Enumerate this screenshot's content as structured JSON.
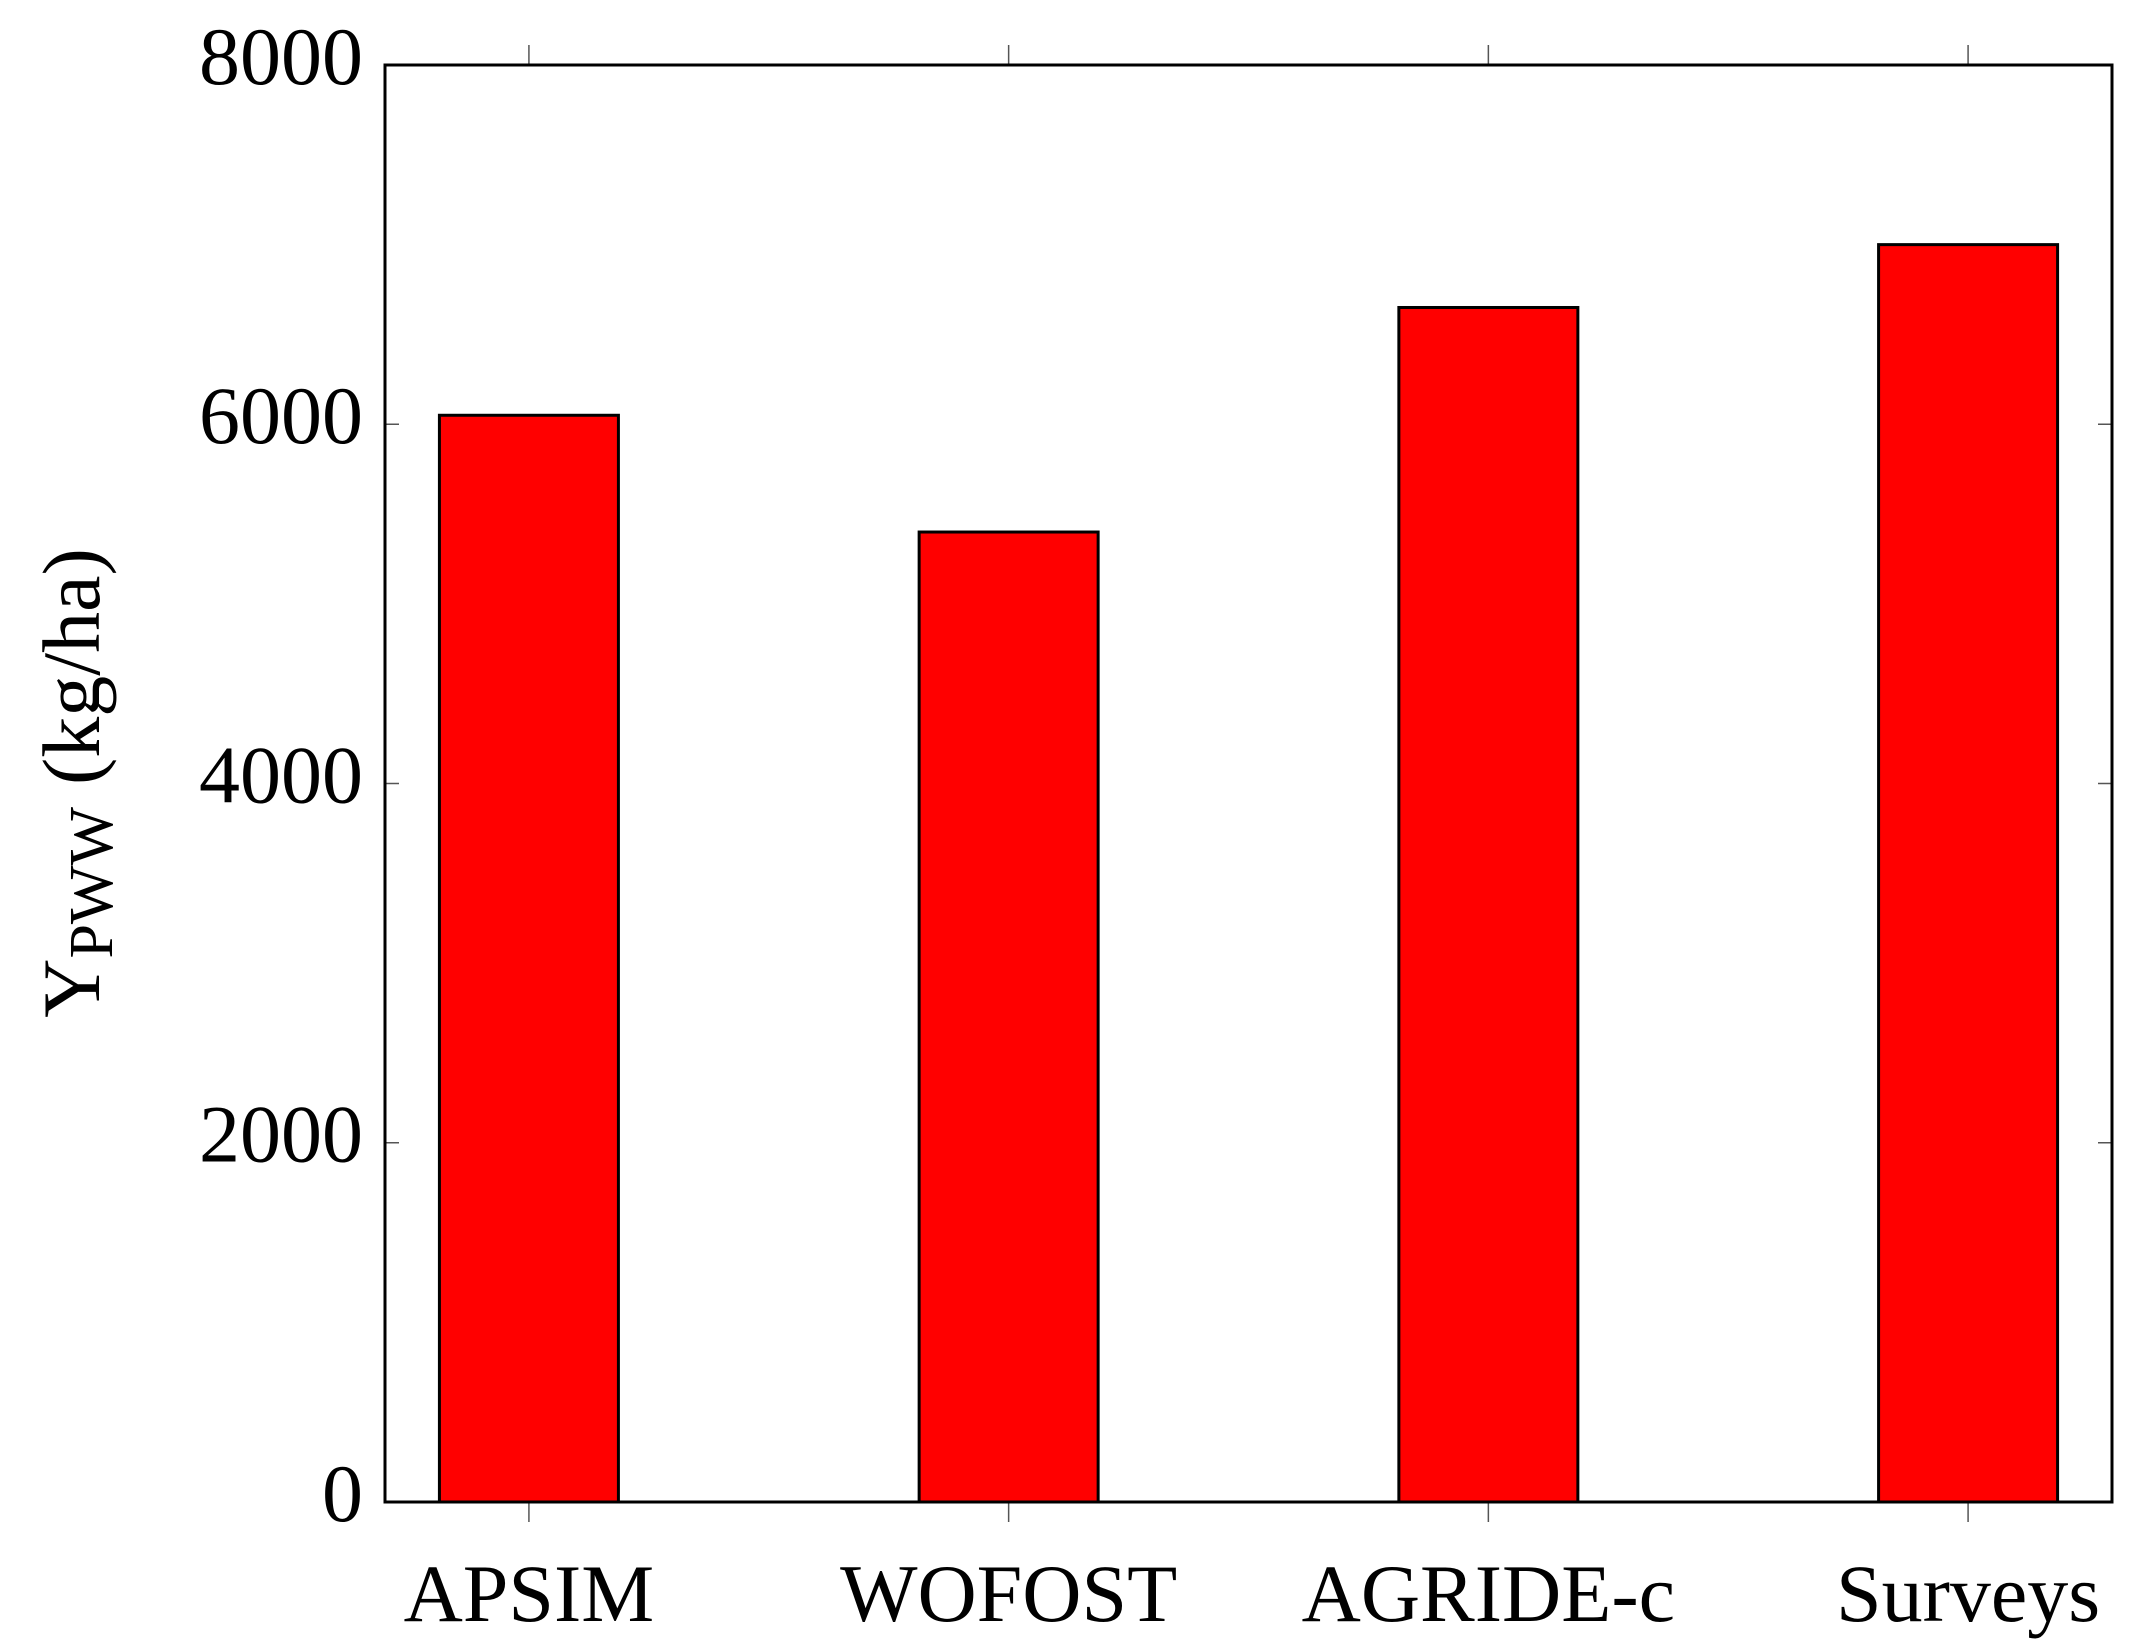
{
  "chart_data": {
    "type": "bar",
    "y_label": "Y",
    "y_label_subscript": "PWW",
    "y_label_unit": "(kg/ha)",
    "categories": [
      "APSIM",
      "WOFOST",
      "AGRIDE-c",
      "Surveys"
    ],
    "values": [
      6050,
      5400,
      6650,
      7000
    ],
    "color": "#ff0000",
    "ylim": [
      0,
      8000
    ],
    "yticks": [
      0,
      2000,
      4000,
      6000,
      8000
    ],
    "grid": false
  }
}
